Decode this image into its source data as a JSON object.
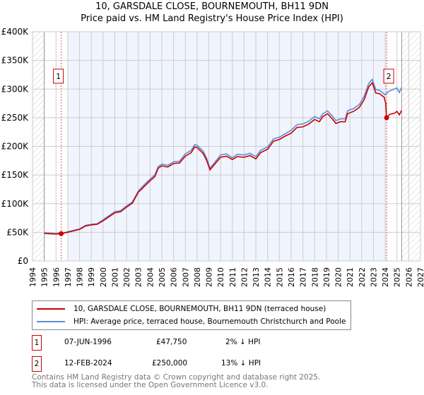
{
  "chart_data": {
    "type": "line",
    "title": "10, GARSDALE CLOSE, BOURNEMOUTH, BH11 9DN",
    "subtitle": "Price paid vs. HM Land Registry's House Price Index (HPI)",
    "xlim": [
      1994,
      2027
    ],
    "ylim": [
      0,
      400000
    ],
    "x_ticks": [
      "1994",
      "1995",
      "1996",
      "1997",
      "1998",
      "1999",
      "2000",
      "2001",
      "2002",
      "2003",
      "2004",
      "2005",
      "2006",
      "2007",
      "2008",
      "2009",
      "2010",
      "2011",
      "2012",
      "2013",
      "2014",
      "2015",
      "2016",
      "2017",
      "2018",
      "2019",
      "2020",
      "2021",
      "2022",
      "2023",
      "2024",
      "2025",
      "2026",
      "2027"
    ],
    "y_ticks": [
      {
        "v": 0,
        "l": "£0"
      },
      {
        "v": 50000,
        "l": "£50K"
      },
      {
        "v": 100000,
        "l": "£100K"
      },
      {
        "v": 150000,
        "l": "£150K"
      },
      {
        "v": 200000,
        "l": "£200K"
      },
      {
        "v": 250000,
        "l": "£250K"
      },
      {
        "v": 300000,
        "l": "£300K"
      },
      {
        "v": 350000,
        "l": "£350K"
      },
      {
        "v": 400000,
        "l": "£400K"
      }
    ],
    "series": [
      {
        "name": "10, GARSDALE CLOSE, BOURNEMOUTH, BH11 9DN (terraced house)",
        "color": "#cc0000",
        "points": [
          [
            1995,
            48
          ],
          [
            1996,
            47
          ],
          [
            1996.44,
            47.75
          ],
          [
            1997,
            50
          ],
          [
            1998,
            55
          ],
          [
            1998.5,
            61
          ],
          [
            1999,
            63
          ],
          [
            1999.5,
            64
          ],
          [
            2000,
            70
          ],
          [
            2000.5,
            77
          ],
          [
            2001,
            84
          ],
          [
            2001.5,
            86
          ],
          [
            2002,
            94
          ],
          [
            2002.5,
            101
          ],
          [
            2003,
            120
          ],
          [
            2003.5,
            130
          ],
          [
            2004,
            140
          ],
          [
            2004.4,
            147
          ],
          [
            2004.7,
            162
          ],
          [
            2005,
            166
          ],
          [
            2005.5,
            164
          ],
          [
            2006,
            170
          ],
          [
            2006.5,
            171
          ],
          [
            2007,
            183
          ],
          [
            2007.5,
            189
          ],
          [
            2007.8,
            199
          ],
          [
            2008,
            198
          ],
          [
            2008.5,
            188
          ],
          [
            2008.8,
            176
          ],
          [
            2009.1,
            159
          ],
          [
            2009.5,
            169
          ],
          [
            2010,
            181
          ],
          [
            2010.5,
            183
          ],
          [
            2011,
            177
          ],
          [
            2011.4,
            182
          ],
          [
            2012,
            181
          ],
          [
            2012.5,
            184
          ],
          [
            2013,
            178
          ],
          [
            2013.4,
            189
          ],
          [
            2014,
            195
          ],
          [
            2014.5,
            209
          ],
          [
            2015,
            212
          ],
          [
            2015.5,
            218
          ],
          [
            2016,
            223
          ],
          [
            2016.5,
            233
          ],
          [
            2017,
            234
          ],
          [
            2017.5,
            239
          ],
          [
            2018,
            247
          ],
          [
            2018.4,
            243
          ],
          [
            2018.7,
            252
          ],
          [
            2019.1,
            257
          ],
          [
            2019.5,
            248
          ],
          [
            2019.8,
            240
          ],
          [
            2020.2,
            243
          ],
          [
            2020.6,
            243
          ],
          [
            2020.8,
            257
          ],
          [
            2021.3,
            261
          ],
          [
            2021.8,
            268
          ],
          [
            2022.2,
            281
          ],
          [
            2022.6,
            304
          ],
          [
            2022.9,
            311
          ],
          [
            2023.2,
            293
          ],
          [
            2023.5,
            292
          ],
          [
            2023.9,
            286
          ],
          [
            2024.05,
            275
          ],
          [
            2024.12,
            250
          ],
          [
            2024.4,
            256
          ],
          [
            2024.8,
            258
          ],
          [
            2025,
            261
          ],
          [
            2025.2,
            255
          ],
          [
            2025.4,
            263
          ]
        ]
      },
      {
        "name": "HPI: Average price, terraced house, Bournemouth Christchurch and Poole",
        "color": "#5b8fd6",
        "points": [
          [
            1995,
            49
          ],
          [
            1996,
            48
          ],
          [
            1996.5,
            48.5
          ],
          [
            1997,
            51
          ],
          [
            1998,
            56
          ],
          [
            1998.5,
            62
          ],
          [
            1999,
            64
          ],
          [
            1999.5,
            65
          ],
          [
            2000,
            72
          ],
          [
            2000.5,
            79
          ],
          [
            2001,
            86
          ],
          [
            2001.5,
            88
          ],
          [
            2002,
            96
          ],
          [
            2002.5,
            103
          ],
          [
            2003,
            122
          ],
          [
            2003.5,
            133
          ],
          [
            2004,
            143
          ],
          [
            2004.4,
            150
          ],
          [
            2004.7,
            165
          ],
          [
            2005,
            169
          ],
          [
            2005.5,
            167
          ],
          [
            2006,
            173
          ],
          [
            2006.5,
            174
          ],
          [
            2007,
            187
          ],
          [
            2007.5,
            193
          ],
          [
            2007.8,
            203
          ],
          [
            2008,
            202
          ],
          [
            2008.5,
            192
          ],
          [
            2008.8,
            180
          ],
          [
            2009.1,
            162
          ],
          [
            2009.5,
            172
          ],
          [
            2010,
            185
          ],
          [
            2010.5,
            187
          ],
          [
            2011,
            180
          ],
          [
            2011.4,
            186
          ],
          [
            2012,
            185
          ],
          [
            2012.5,
            188
          ],
          [
            2013,
            182
          ],
          [
            2013.4,
            193
          ],
          [
            2014,
            199
          ],
          [
            2014.5,
            213
          ],
          [
            2015,
            216
          ],
          [
            2015.5,
            222
          ],
          [
            2016,
            228
          ],
          [
            2016.5,
            238
          ],
          [
            2017,
            239
          ],
          [
            2017.5,
            244
          ],
          [
            2018,
            252
          ],
          [
            2018.4,
            248
          ],
          [
            2018.7,
            257
          ],
          [
            2019.1,
            262
          ],
          [
            2019.5,
            253
          ],
          [
            2019.8,
            245
          ],
          [
            2020.2,
            248
          ],
          [
            2020.6,
            248
          ],
          [
            2020.8,
            262
          ],
          [
            2021.3,
            266
          ],
          [
            2021.8,
            273
          ],
          [
            2022.2,
            287
          ],
          [
            2022.6,
            310
          ],
          [
            2022.9,
            317
          ],
          [
            2023.2,
            299
          ],
          [
            2023.5,
            298
          ],
          [
            2024,
            290
          ],
          [
            2024.3,
            296
          ],
          [
            2025,
            302
          ],
          [
            2025.2,
            294
          ],
          [
            2025.4,
            303
          ]
        ]
      }
    ],
    "sales": [
      {
        "label": "1",
        "x": 1996.44,
        "y": 47.75
      },
      {
        "label": "2",
        "x": 2024.12,
        "y": 250
      }
    ],
    "shaded_range": [
      1997,
      2024.12
    ],
    "hatched_ranges": [
      [
        1994,
        1995
      ],
      [
        2025.4,
        2027
      ]
    ],
    "grid": true
  },
  "header": {
    "title": "10, GARSDALE CLOSE, BOURNEMOUTH, BH11 9DN",
    "subtitle": "Price paid vs. HM Land Registry's House Price Index (HPI)"
  },
  "legend": [
    "10, GARSDALE CLOSE, BOURNEMOUTH, BH11 9DN (terraced house)",
    "HPI: Average price, terraced house, Bournemouth Christchurch and Poole"
  ],
  "sales_table": [
    {
      "num": "1",
      "date": "07-JUN-1996",
      "price": "£47,750",
      "hpi": "2% ↓ HPI"
    },
    {
      "num": "2",
      "date": "12-FEB-2024",
      "price": "£250,000",
      "hpi": "13% ↓ HPI"
    }
  ],
  "footer": [
    "Contains HM Land Registry data © Crown copyright and database right 2025.",
    "This data is licensed under the Open Government Licence v3.0."
  ]
}
